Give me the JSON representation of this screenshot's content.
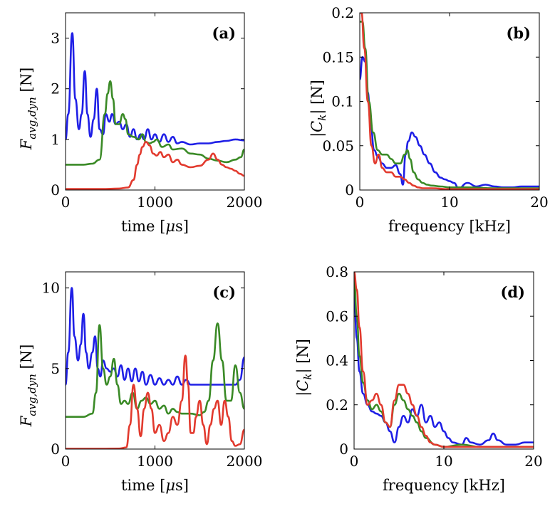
{
  "colors": {
    "blue": "#1f1fe6",
    "green": "#3a8a26",
    "red": "#e23a2e"
  },
  "chart_data": [
    {
      "id": "a",
      "type": "line",
      "panel_label": "(a)",
      "xlabel": "time [μs]",
      "ylabel": "F_avg,dyn [N]",
      "xlim": [
        0,
        2000
      ],
      "ylim": [
        0,
        3.5
      ],
      "xticks": [
        0,
        1000,
        2000
      ],
      "xtick_labels": [
        "0",
        "1000",
        "2000"
      ],
      "yticks": [
        0,
        1,
        2,
        3
      ],
      "ytick_labels": [
        "0",
        "1",
        "2",
        "3"
      ],
      "series": [
        {
          "color": "blue",
          "x": [
            0,
            30,
            75,
            110,
            150,
            180,
            215,
            245,
            280,
            315,
            350,
            380,
            420,
            450,
            490,
            520,
            560,
            600,
            640,
            680,
            720,
            760,
            800,
            840,
            880,
            920,
            960,
            1000,
            1050,
            1100,
            1150,
            1200,
            1250,
            1300,
            1400,
            1500,
            1600,
            1700,
            1800,
            1900,
            2000
          ],
          "y": [
            1.0,
            1.5,
            3.1,
            1.8,
            1.2,
            1.5,
            2.35,
            1.5,
            1.05,
            1.4,
            2.0,
            1.2,
            1.1,
            1.5,
            1.35,
            1.5,
            1.3,
            1.35,
            1.2,
            1.3,
            1.05,
            1.2,
            1.0,
            1.1,
            1.0,
            1.2,
            1.0,
            1.1,
            0.95,
            1.1,
            0.95,
            1.05,
            0.92,
            0.95,
            0.9,
            0.92,
            0.92,
            0.95,
            0.97,
            1.0,
            0.98
          ]
        },
        {
          "color": "green",
          "x": [
            0,
            200,
            300,
            380,
            440,
            470,
            500,
            530,
            560,
            600,
            640,
            670,
            700,
            760,
            820,
            860,
            900,
            940,
            980,
            1020,
            1080,
            1150,
            1200,
            1300,
            1400,
            1500,
            1600,
            1700,
            1800,
            1900,
            1960,
            2000
          ],
          "y": [
            0.5,
            0.5,
            0.52,
            0.6,
            1.5,
            1.9,
            2.15,
            1.8,
            1.3,
            1.3,
            1.5,
            1.4,
            1.1,
            1.05,
            1.0,
            1.1,
            0.95,
            0.92,
            0.95,
            1.0,
            0.85,
            0.9,
            0.8,
            0.82,
            0.72,
            0.7,
            0.62,
            0.58,
            0.55,
            0.6,
            0.65,
            0.8
          ]
        },
        {
          "color": "red",
          "x": [
            0,
            200,
            400,
            600,
            700,
            760,
            800,
            830,
            860,
            900,
            940,
            980,
            1020,
            1060,
            1100,
            1150,
            1200,
            1250,
            1300,
            1400,
            1500,
            1600,
            1650,
            1700,
            1750,
            1800,
            1850,
            1900,
            1950,
            2000
          ],
          "y": [
            0.02,
            0.02,
            0.02,
            0.03,
            0.05,
            0.2,
            0.5,
            0.7,
            0.85,
            0.95,
            0.88,
            0.72,
            0.68,
            0.75,
            0.65,
            0.7,
            0.55,
            0.6,
            0.5,
            0.45,
            0.48,
            0.6,
            0.72,
            0.6,
            0.5,
            0.45,
            0.42,
            0.38,
            0.32,
            0.28
          ]
        }
      ]
    },
    {
      "id": "b",
      "type": "line",
      "panel_label": "(b)",
      "xlabel": "frequency [kHz]",
      "ylabel": "|C_k| [N]",
      "xlim": [
        0,
        20
      ],
      "ylim": [
        0,
        0.2
      ],
      "xticks": [
        0,
        10,
        20
      ],
      "xtick_labels": [
        "0",
        "10",
        "20"
      ],
      "yticks": [
        0,
        0.05,
        0.1,
        0.15,
        0.2
      ],
      "ytick_labels": [
        "0",
        "0.05",
        "0.1",
        "0.15",
        "0.2"
      ],
      "series": [
        {
          "color": "blue",
          "x": [
            0,
            0.3,
            0.6,
            0.9,
            1.2,
            1.6,
            2.0,
            2.5,
            3,
            3.5,
            4,
            4.5,
            4.8,
            5.1,
            5.4,
            5.8,
            6.2,
            6.7,
            7.2,
            7.8,
            8.4,
            9,
            9.5,
            10,
            10.5,
            11,
            12,
            13,
            14,
            15,
            16,
            17,
            18,
            19,
            20
          ],
          "y": [
            0.125,
            0.15,
            0.145,
            0.11,
            0.075,
            0.045,
            0.038,
            0.03,
            0.025,
            0.025,
            0.028,
            0.018,
            0.006,
            0.04,
            0.055,
            0.065,
            0.06,
            0.05,
            0.04,
            0.03,
            0.02,
            0.014,
            0.012,
            0.01,
            0.008,
            0.002,
            0.008,
            0.004,
            0.006,
            0.004,
            0.003,
            0.003,
            0.004,
            0.004,
            0.004
          ]
        },
        {
          "color": "green",
          "x": [
            0,
            0.3,
            0.6,
            1.0,
            1.5,
            2,
            2.5,
            3,
            3.5,
            4,
            4.5,
            5,
            5.3,
            5.6,
            6,
            6.5,
            7,
            7.5,
            8,
            9,
            10,
            12,
            15,
            20
          ],
          "y": [
            0.19,
            0.19,
            0.16,
            0.1,
            0.065,
            0.045,
            0.04,
            0.04,
            0.035,
            0.03,
            0.03,
            0.04,
            0.045,
            0.035,
            0.02,
            0.012,
            0.008,
            0.006,
            0.005,
            0.004,
            0.003,
            0.003,
            0.002,
            0.002
          ]
        },
        {
          "color": "red",
          "x": [
            0,
            0.2,
            0.5,
            0.9,
            1.3,
            1.7,
            2.1,
            2.5,
            3,
            3.5,
            4,
            4.5,
            5,
            5.5,
            6,
            6.5,
            7,
            8,
            10,
            15,
            20
          ],
          "y": [
            0.2,
            0.2,
            0.16,
            0.1,
            0.05,
            0.03,
            0.04,
            0.025,
            0.02,
            0.02,
            0.015,
            0.015,
            0.012,
            0.008,
            0.005,
            0.003,
            0.002,
            0.002,
            0.001,
            0.001,
            0.001
          ]
        }
      ]
    },
    {
      "id": "c",
      "type": "line",
      "panel_label": "(c)",
      "xlabel": "time [μs]",
      "ylabel": "F_avg,dyn [N]",
      "xlim": [
        0,
        2000
      ],
      "ylim": [
        0,
        11
      ],
      "xticks": [
        0,
        1000,
        2000
      ],
      "xtick_labels": [
        "0",
        "1000",
        "2000"
      ],
      "yticks": [
        0,
        5,
        10
      ],
      "ytick_labels": [
        "0",
        "5",
        "10"
      ],
      "series": [
        {
          "color": "blue",
          "x": [
            0,
            30,
            70,
            100,
            140,
            170,
            200,
            230,
            260,
            300,
            330,
            360,
            390,
            420,
            460,
            500,
            540,
            580,
            620,
            660,
            700,
            740,
            780,
            820,
            860,
            900,
            950,
            1000,
            1050,
            1100,
            1150,
            1200,
            1250,
            1300,
            1350,
            1400,
            1500,
            1600,
            1700,
            1800,
            1900,
            1950,
            2000
          ],
          "y": [
            4.0,
            6.0,
            10.0,
            7.0,
            5.5,
            6.5,
            8.4,
            6.0,
            5.0,
            6.0,
            7.0,
            5.0,
            4.5,
            5.5,
            5.0,
            4.8,
            5.0,
            4.5,
            5.2,
            4.3,
            5.0,
            4.2,
            5.0,
            4.2,
            4.8,
            4.0,
            4.6,
            4.0,
            4.4,
            4.0,
            4.3,
            4.0,
            4.5,
            4.0,
            4.3,
            4.0,
            4.0,
            4.0,
            4.0,
            4.0,
            4.0,
            4.3,
            5.7
          ]
        },
        {
          "color": "green",
          "x": [
            0,
            200,
            300,
            340,
            380,
            420,
            460,
            500,
            540,
            580,
            620,
            660,
            700,
            750,
            800,
            850,
            900,
            950,
            1000,
            1050,
            1100,
            1150,
            1200,
            1250,
            1300,
            1400,
            1500,
            1550,
            1600,
            1650,
            1700,
            1750,
            1800,
            1850,
            1900,
            1950,
            2000
          ],
          "y": [
            2.0,
            2.0,
            2.2,
            3.5,
            7.7,
            5.0,
            4.0,
            4.5,
            5.6,
            4.0,
            2.8,
            3.0,
            2.8,
            3.5,
            2.5,
            3.0,
            3.2,
            2.8,
            3.0,
            2.5,
            2.7,
            2.2,
            2.5,
            2.3,
            2.2,
            2.2,
            2.1,
            2.3,
            3.0,
            5.5,
            7.8,
            5.5,
            3.0,
            3.0,
            5.2,
            3.5,
            2.5
          ]
        },
        {
          "color": "red",
          "x": [
            0,
            400,
            600,
            680,
            720,
            760,
            800,
            840,
            880,
            920,
            960,
            1000,
            1050,
            1100,
            1150,
            1200,
            1250,
            1300,
            1340,
            1370,
            1400,
            1430,
            1460,
            1500,
            1540,
            1580,
            1620,
            1660,
            1700,
            1740,
            1780,
            1820,
            1860,
            1900,
            1950,
            2000
          ],
          "y": [
            0.02,
            0.02,
            0.03,
            0.1,
            1.5,
            4.0,
            2.5,
            0.8,
            2.5,
            3.5,
            2.5,
            1.0,
            1.5,
            0.5,
            1.0,
            2.0,
            1.5,
            3.0,
            5.8,
            4.0,
            1.0,
            1.0,
            2.0,
            3.0,
            1.5,
            0.3,
            1.5,
            2.5,
            3.0,
            1.5,
            3.0,
            2.0,
            0.5,
            0.2,
            0.3,
            1.2
          ]
        }
      ]
    },
    {
      "id": "d",
      "type": "line",
      "panel_label": "(d)",
      "xlabel": "frequency [kHz]",
      "ylabel": "|C_k| [N]",
      "xlim": [
        0,
        20
      ],
      "ylim": [
        0,
        0.8
      ],
      "xticks": [
        0,
        10,
        20
      ],
      "xtick_labels": [
        "0",
        "10",
        "20"
      ],
      "yticks": [
        0,
        0.2,
        0.4,
        0.6,
        0.8
      ],
      "ytick_labels": [
        "0",
        "0.2",
        "0.4",
        "0.6",
        "0.8"
      ],
      "series": [
        {
          "color": "blue",
          "x": [
            0,
            0.3,
            0.6,
            1.0,
            1.5,
            2,
            2.5,
            3,
            3.5,
            4,
            4.5,
            5,
            5.5,
            6,
            6.5,
            7,
            7.5,
            8,
            8.5,
            9,
            9.5,
            10,
            10.5,
            11,
            12,
            12.5,
            13,
            14,
            15,
            15.5,
            16,
            17,
            18,
            19,
            20
          ],
          "y": [
            0.72,
            0.5,
            0.35,
            0.25,
            0.2,
            0.17,
            0.16,
            0.15,
            0.12,
            0.08,
            0.03,
            0.1,
            0.15,
            0.12,
            0.18,
            0.15,
            0.2,
            0.12,
            0.15,
            0.1,
            0.12,
            0.08,
            0.05,
            0.03,
            0.02,
            0.05,
            0.03,
            0.02,
            0.04,
            0.07,
            0.04,
            0.02,
            0.02,
            0.03,
            0.03
          ]
        },
        {
          "color": "green",
          "x": [
            0,
            0.3,
            0.6,
            1,
            1.5,
            2,
            2.5,
            3,
            3.5,
            4,
            4.5,
            5,
            5.5,
            6,
            6.5,
            7,
            7.5,
            8,
            9,
            10,
            12,
            14,
            16,
            18,
            20
          ],
          "y": [
            0.78,
            0.6,
            0.42,
            0.3,
            0.22,
            0.18,
            0.2,
            0.17,
            0.12,
            0.1,
            0.2,
            0.25,
            0.22,
            0.18,
            0.15,
            0.12,
            0.08,
            0.05,
            0.02,
            0.01,
            0.02,
            0.01,
            0.01,
            0.01,
            0.01
          ]
        },
        {
          "color": "red",
          "x": [
            0,
            0.3,
            0.6,
            1,
            1.5,
            2,
            2.5,
            3,
            3.5,
            4,
            4.5,
            5,
            5.5,
            6,
            6.5,
            7,
            7.5,
            8,
            8.5,
            9,
            10,
            12,
            14,
            16,
            18,
            20
          ],
          "y": [
            0.8,
            0.72,
            0.55,
            0.35,
            0.2,
            0.22,
            0.25,
            0.2,
            0.12,
            0.1,
            0.22,
            0.29,
            0.29,
            0.25,
            0.2,
            0.15,
            0.1,
            0.06,
            0.03,
            0.02,
            0.01,
            0.01,
            0.01,
            0.01,
            0.01,
            0.01
          ]
        }
      ]
    }
  ]
}
